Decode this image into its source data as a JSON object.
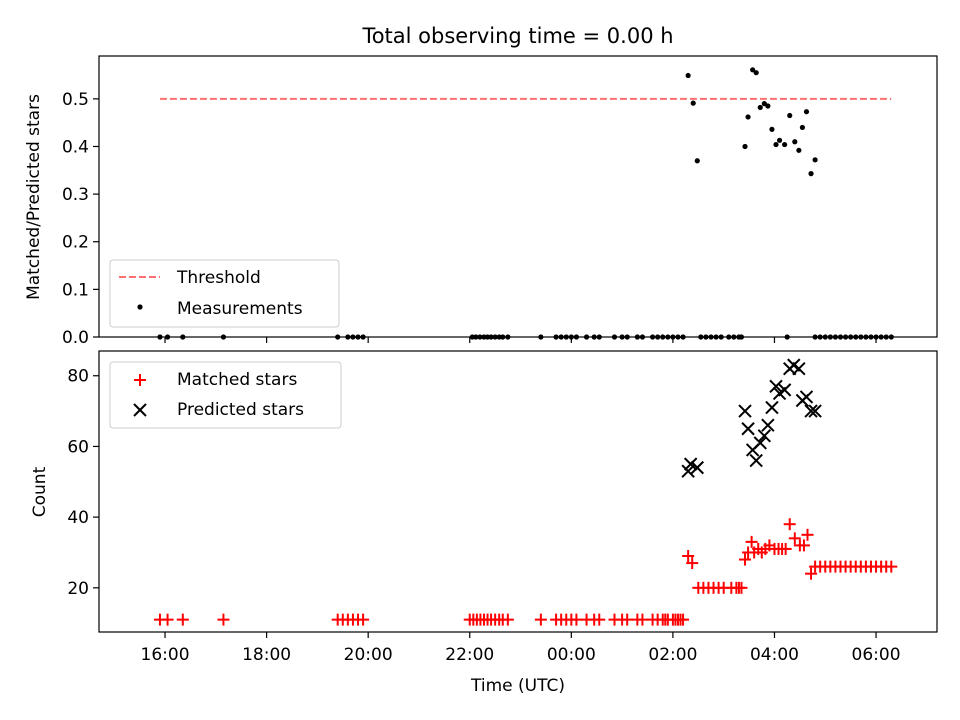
{
  "figure_title": "Total observing time = 0.00 h",
  "xlabel": "Time (UTC)",
  "colors": {
    "threshold": "#ff7070",
    "measurements": "#000000",
    "matched": "#ff0000",
    "predicted": "#000000"
  },
  "chart_data": [
    {
      "type": "scatter",
      "panel": "top",
      "title": "Total observing time = 0.00 h",
      "xlabel": "",
      "ylabel": "Matched/Predicted stars",
      "x_unit": "hours since 00:00 UTC",
      "xlim": [
        -9.3,
        7.2
      ],
      "ylim": [
        0,
        0.59
      ],
      "xticks": [
        -8,
        -6,
        -4,
        -2,
        0,
        2,
        4,
        6
      ],
      "xtick_labels": [
        "16:00",
        "18:00",
        "20:00",
        "22:00",
        "00:00",
        "02:00",
        "04:00",
        "06:00"
      ],
      "yticks": [
        0.0,
        0.1,
        0.2,
        0.3,
        0.4,
        0.5
      ],
      "ytick_labels": [
        "0.0",
        "0.1",
        "0.2",
        "0.3",
        "0.4",
        "0.5"
      ],
      "legend": [
        "Threshold",
        "Measurements"
      ],
      "legend_position": "lower-left",
      "series": [
        {
          "name": "Threshold",
          "style": "dashed-line",
          "x": [
            -8.1,
            6.3
          ],
          "y": [
            0.5,
            0.5
          ]
        },
        {
          "name": "Measurements",
          "style": "dot",
          "x": [
            -8.1,
            -7.95,
            -7.65,
            -6.85,
            -4.6,
            -4.4,
            -4.3,
            -4.2,
            -4.1,
            -1.95,
            -1.88,
            -1.8,
            -1.72,
            -1.65,
            -1.58,
            -1.5,
            -1.42,
            -1.35,
            -1.25,
            -0.6,
            -0.3,
            -0.2,
            -0.1,
            0.0,
            0.1,
            0.3,
            0.45,
            0.55,
            0.85,
            1.0,
            1.1,
            1.3,
            1.4,
            1.6,
            1.7,
            1.8,
            1.9,
            2.0,
            2.1,
            2.2,
            2.55,
            2.65,
            2.75,
            2.85,
            2.95,
            3.1,
            3.2,
            3.3,
            3.35,
            4.25,
            4.8,
            4.9,
            5.0,
            5.1,
            5.2,
            5.3,
            5.4,
            5.5,
            5.6,
            5.7,
            5.8,
            5.9,
            6.0,
            6.1,
            6.2,
            6.3,
            2.3,
            2.4,
            2.48,
            3.42,
            3.48,
            3.57,
            3.64,
            3.72,
            3.8,
            3.87,
            3.95,
            4.03,
            4.1,
            4.2,
            4.3,
            4.4,
            4.48,
            4.55,
            4.63,
            4.72,
            4.8
          ],
          "y": [
            0,
            0,
            0,
            0,
            0,
            0,
            0,
            0,
            0,
            0,
            0,
            0,
            0,
            0,
            0,
            0,
            0,
            0,
            0,
            0,
            0,
            0,
            0,
            0,
            0,
            0,
            0,
            0,
            0,
            0,
            0,
            0,
            0,
            0,
            0,
            0,
            0,
            0,
            0,
            0,
            0,
            0,
            0,
            0,
            0,
            0,
            0,
            0,
            0,
            0,
            0,
            0,
            0,
            0,
            0,
            0,
            0,
            0,
            0,
            0,
            0,
            0,
            0,
            0,
            0,
            0,
            0.549,
            0.491,
            0.37,
            0.4,
            0.462,
            0.561,
            0.555,
            0.482,
            0.49,
            0.485,
            0.436,
            0.404,
            0.413,
            0.404,
            0.465,
            0.41,
            0.392,
            0.44,
            0.473,
            0.343,
            0.372
          ]
        }
      ]
    },
    {
      "type": "scatter",
      "panel": "bottom",
      "xlabel": "Time (UTC)",
      "ylabel": "Count",
      "x_unit": "hours since 00:00 UTC",
      "xlim": [
        -9.3,
        7.2
      ],
      "ylim": [
        7.5,
        87
      ],
      "xticks": [
        -8,
        -6,
        -4,
        -2,
        0,
        2,
        4,
        6
      ],
      "xtick_labels": [
        "16:00",
        "18:00",
        "20:00",
        "22:00",
        "00:00",
        "02:00",
        "04:00",
        "06:00"
      ],
      "yticks": [
        20,
        40,
        60,
        80
      ],
      "ytick_labels": [
        "20",
        "40",
        "60",
        "80"
      ],
      "legend": [
        "Matched stars",
        "Predicted stars"
      ],
      "legend_position": "upper-left",
      "series": [
        {
          "name": "Matched stars",
          "marker": "plus",
          "x": [
            -8.1,
            -7.95,
            -7.65,
            -6.85,
            -4.6,
            -4.5,
            -4.4,
            -4.3,
            -4.2,
            -4.1,
            -2.0,
            -1.93,
            -1.86,
            -1.79,
            -1.72,
            -1.65,
            -1.58,
            -1.5,
            -1.42,
            -1.35,
            -1.25,
            -0.6,
            -0.3,
            -0.2,
            -0.1,
            0.0,
            0.1,
            0.3,
            0.45,
            0.55,
            0.85,
            1.0,
            1.1,
            1.3,
            1.4,
            1.6,
            1.7,
            1.8,
            1.85,
            1.9,
            2.0,
            2.05,
            2.1,
            2.15,
            2.2,
            2.3,
            2.38,
            2.5,
            2.6,
            2.7,
            2.8,
            2.9,
            3.0,
            3.15,
            3.25,
            3.3,
            3.35,
            3.42,
            3.48,
            3.55,
            3.6,
            3.68,
            3.75,
            3.82,
            3.9,
            4.0,
            4.08,
            4.15,
            4.22,
            4.3,
            4.4,
            4.5,
            4.58,
            4.65,
            4.72,
            4.8,
            4.9,
            5.0,
            5.1,
            5.2,
            5.3,
            5.4,
            5.5,
            5.6,
            5.7,
            5.8,
            5.9,
            6.0,
            6.1,
            6.2,
            6.3
          ],
          "y": [
            11,
            11,
            11,
            11,
            11,
            11,
            11,
            11,
            11,
            11,
            11,
            11,
            11,
            11,
            11,
            11,
            11,
            11,
            11,
            11,
            11,
            11,
            11,
            11,
            11,
            11,
            11,
            11,
            11,
            11,
            11,
            11,
            11,
            11,
            11,
            11,
            11,
            11,
            11,
            11,
            11,
            11,
            11,
            11,
            11,
            29,
            27,
            20,
            20,
            20,
            20,
            20,
            20,
            20,
            20,
            20,
            20,
            28,
            30,
            33,
            30,
            31,
            30,
            31,
            32,
            31,
            31,
            31,
            31,
            38,
            34,
            32,
            32,
            35,
            24,
            26,
            26,
            26,
            26,
            26,
            26,
            26,
            26,
            26,
            26,
            26,
            26,
            26,
            26,
            26,
            26
          ]
        },
        {
          "name": "Predicted stars",
          "marker": "x",
          "x": [
            2.3,
            2.35,
            2.48,
            3.42,
            3.48,
            3.57,
            3.64,
            3.72,
            3.8,
            3.87,
            3.95,
            4.03,
            4.1,
            4.2,
            4.3,
            4.38,
            4.48,
            4.55,
            4.63,
            4.72,
            4.8
          ],
          "y": [
            53,
            55,
            54,
            70,
            65,
            59,
            56,
            61,
            63,
            66,
            71,
            77,
            75,
            76,
            82,
            83,
            82,
            73,
            74,
            70,
            70
          ]
        }
      ]
    }
  ]
}
